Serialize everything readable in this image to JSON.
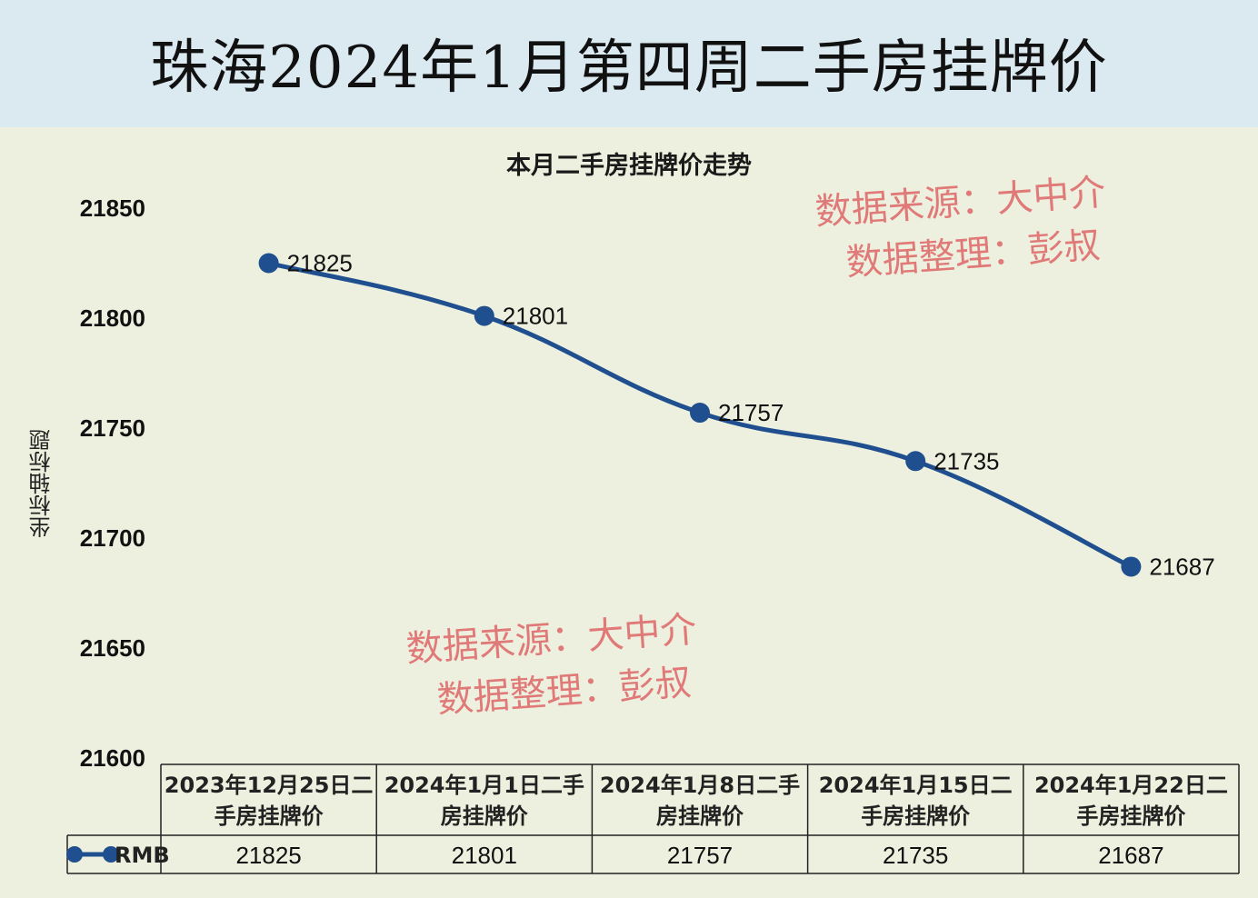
{
  "header": {
    "title": "珠海2024年1月第四周二手房挂牌价"
  },
  "watermark": {
    "line1": "数据来源：大中介",
    "line2": "数据整理：彭叔"
  },
  "colors": {
    "line": "#1f4f8f",
    "header_bg": "#dbe9f1",
    "plot_bg": "#eef0df",
    "watermark": "#e07a78"
  },
  "chart_data": {
    "type": "line",
    "title": "本月二手房挂牌价走势",
    "ylabel": "坐标轴标题",
    "xlabel": "",
    "ylim": [
      21600,
      21850
    ],
    "yticks": [
      21850,
      21800,
      21750,
      21700,
      21650,
      21600
    ],
    "grid": false,
    "data_table": true,
    "categories": [
      [
        "2023年12月25日二",
        "手房挂牌价"
      ],
      [
        "2024年1月1日二手",
        "房挂牌价"
      ],
      [
        "2024年1月8日二手",
        "房挂牌价"
      ],
      [
        "2024年1月15日二",
        "手房挂牌价"
      ],
      [
        "2024年1月22日二",
        "手房挂牌价"
      ]
    ],
    "series": [
      {
        "name": "RMB",
        "values": [
          21825,
          21801,
          21757,
          21735,
          21687
        ]
      }
    ]
  }
}
